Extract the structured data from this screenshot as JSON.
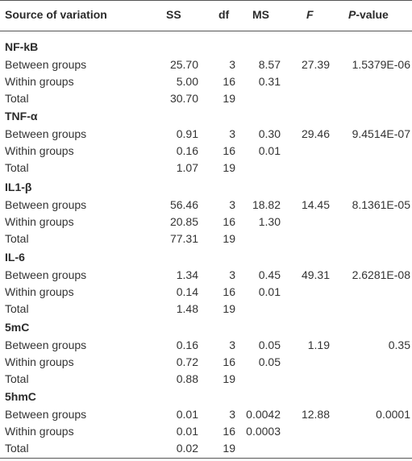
{
  "header": {
    "source": "Source of variation",
    "ss": "SS",
    "df": "df",
    "ms": "MS",
    "f": "F",
    "p_italic": "P",
    "p_rest": "-value"
  },
  "sections": [
    {
      "title": "NF-kB",
      "rows": [
        {
          "label": "Between groups",
          "ss": "25.70",
          "df": "3",
          "ms": "8.57",
          "f": "27.39",
          "p": "1.5379E-06"
        },
        {
          "label": "Within groups",
          "ss": "5.00",
          "df": "16",
          "ms": "0.31",
          "f": "",
          "p": ""
        },
        {
          "label": "Total",
          "ss": "30.70",
          "df": "19",
          "ms": "",
          "f": "",
          "p": ""
        }
      ]
    },
    {
      "title": "TNF-α",
      "rows": [
        {
          "label": "Between groups",
          "ss": "0.91",
          "df": "3",
          "ms": "0.30",
          "f": "29.46",
          "p": "9.4514E-07"
        },
        {
          "label": "Within groups",
          "ss": "0.16",
          "df": "16",
          "ms": "0.01",
          "f": "",
          "p": ""
        },
        {
          "label": "Total",
          "ss": "1.07",
          "df": "19",
          "ms": "",
          "f": "",
          "p": ""
        }
      ]
    },
    {
      "title": "IL1-β",
      "rows": [
        {
          "label": "Between groups",
          "ss": "56.46",
          "df": "3",
          "ms": "18.82",
          "f": "14.45",
          "p": "8.1361E-05"
        },
        {
          "label": "Within groups",
          "ss": "20.85",
          "df": "16",
          "ms": "1.30",
          "f": "",
          "p": ""
        },
        {
          "label": "Total",
          "ss": "77.31",
          "df": "19",
          "ms": "",
          "f": "",
          "p": ""
        }
      ]
    },
    {
      "title": "IL-6",
      "rows": [
        {
          "label": "Between groups",
          "ss": "1.34",
          "df": "3",
          "ms": "0.45",
          "f": "49.31",
          "p": "2.6281E-08"
        },
        {
          "label": "Within groups",
          "ss": "0.14",
          "df": "16",
          "ms": "0.01",
          "f": "",
          "p": ""
        },
        {
          "label": "Total",
          "ss": "1.48",
          "df": "19",
          "ms": "",
          "f": "",
          "p": ""
        }
      ]
    },
    {
      "title": "5mC",
      "rows": [
        {
          "label": "Between groups",
          "ss": "0.16",
          "df": "3",
          "ms": "0.05",
          "f": "1.19",
          "p": "0.35"
        },
        {
          "label": "Within groups",
          "ss": "0.72",
          "df": "16",
          "ms": "0.05",
          "f": "",
          "p": ""
        },
        {
          "label": "Total",
          "ss": "0.88",
          "df": "19",
          "ms": "",
          "f": "",
          "p": ""
        }
      ]
    },
    {
      "title": "5hmC",
      "rows": [
        {
          "label": "Between groups",
          "ss": "0.01",
          "df": "3",
          "ms": "0.0042",
          "f": "12.88",
          "p": "0.0001"
        },
        {
          "label": "Within groups",
          "ss": "0.01",
          "df": "16",
          "ms": "0.0003",
          "f": "",
          "p": ""
        },
        {
          "label": "Total",
          "ss": "0.02",
          "df": "19",
          "ms": "",
          "f": "",
          "p": ""
        }
      ]
    }
  ]
}
